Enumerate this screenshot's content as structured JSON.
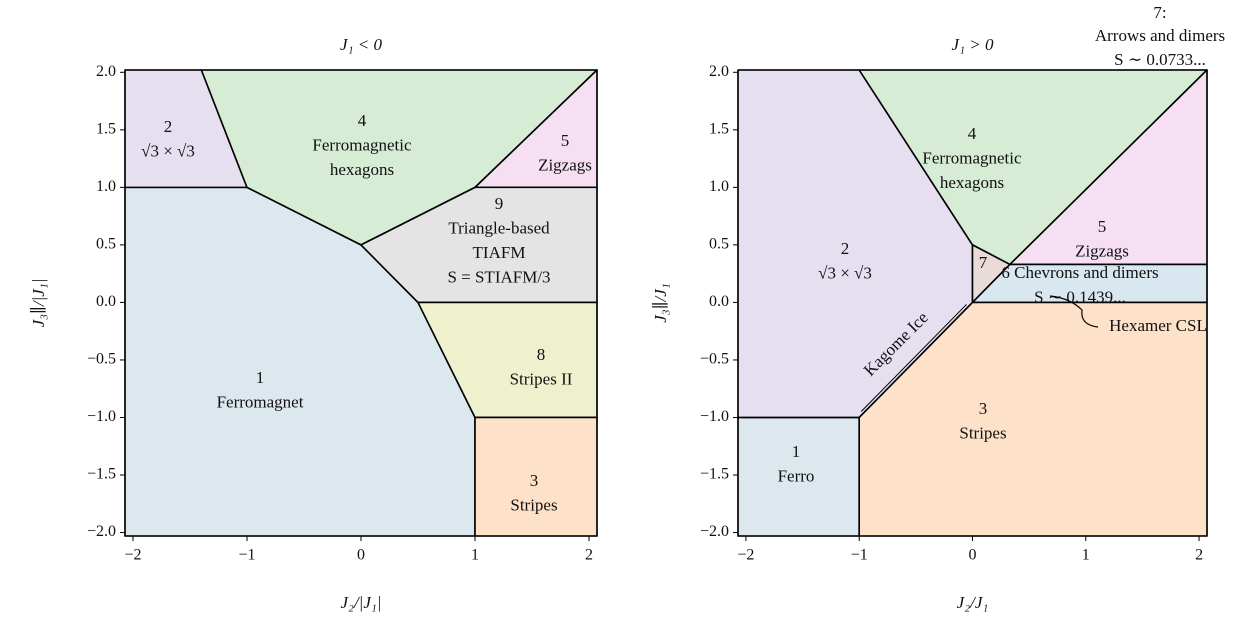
{
  "chart_data": [
    {
      "type": "phase",
      "title": "J₁ < 0",
      "xlabel": "J₂/|J₁|",
      "ylabel": "J₃∥/|J₁|",
      "xlim": [
        -2.07,
        2.07
      ],
      "ylim": [
        -2.03,
        2.02
      ],
      "xticks": [
        {
          "value": -2,
          "label": "−2"
        },
        {
          "value": -1,
          "label": "−1"
        },
        0,
        1,
        2
      ],
      "yticks": [
        {
          "value": -2,
          "label": "−2.0"
        },
        {
          "value": -1.5,
          "label": "−1.5"
        },
        {
          "value": -1,
          "label": "−1.0"
        },
        {
          "value": -0.5,
          "label": "−0.5"
        },
        {
          "value": 0,
          "label": "0.0"
        },
        0.5,
        {
          "value": 1,
          "label": "1.0"
        },
        1.5,
        {
          "value": 2,
          "label": "2.0"
        }
      ],
      "regions": [
        {
          "label": [
            "1",
            "Ferromagnet"
          ],
          "color": "#dde7ee",
          "x": [
            -2.07,
            -1,
            0,
            0.5,
            1,
            1,
            -2.07
          ],
          "y": [
            1,
            1,
            0.5,
            0,
            -1,
            -2.03,
            -2.03
          ]
        },
        {
          "label": [
            "2",
            "√3 × √3"
          ],
          "color": "#e6dff0",
          "x": [
            -2.07,
            -1.4,
            -1,
            -2.07
          ],
          "y": [
            2.02,
            2.02,
            1,
            1
          ]
        },
        {
          "label": [
            "4",
            "Ferromagnetic",
            "hexagons"
          ],
          "color": "#d6ecd5",
          "x": [
            -1.4,
            2.07,
            1,
            0,
            -1
          ],
          "y": [
            2.02,
            2.02,
            1,
            0.5,
            1
          ]
        },
        {
          "label": [
            "5",
            "Zigzags"
          ],
          "color": "#f6dff2",
          "x": [
            2.07,
            2.07,
            1
          ],
          "y": [
            2.02,
            1,
            1
          ]
        },
        {
          "label": [
            "9",
            "Triangle-based",
            "TIAFM",
            "S = STIAFM/3"
          ],
          "color": "#e4e4e4",
          "x": [
            0,
            1,
            2.07,
            2.07,
            0.5
          ],
          "y": [
            0.5,
            1,
            1,
            0,
            0
          ]
        },
        {
          "label": [
            "8",
            "Stripes II"
          ],
          "color": "#eff0cd",
          "x": [
            0.5,
            2.07,
            2.07,
            1
          ],
          "y": [
            0,
            0,
            -1,
            -1
          ]
        },
        {
          "label": [
            "3",
            "Stripes"
          ],
          "color": "#fde1c9",
          "x": [
            1,
            2.07,
            2.07,
            1
          ],
          "y": [
            -1,
            -1,
            -2.03,
            -2.03
          ]
        }
      ]
    },
    {
      "type": "phase",
      "title": "J₁ > 0",
      "xlabel": "J₂/J₁",
      "ylabel": "J₃∥/J₁",
      "xlim": [
        -2.07,
        2.07
      ],
      "ylim": [
        -2.03,
        2.02
      ],
      "xticks": [
        {
          "value": -2,
          "label": "−2"
        },
        {
          "value": -1,
          "label": "−1"
        },
        0,
        1,
        2
      ],
      "yticks": [
        {
          "value": -2,
          "label": "−2.0"
        },
        {
          "value": -1.5,
          "label": "−1.5"
        },
        {
          "value": -1,
          "label": "−1.0"
        },
        {
          "value": -0.5,
          "label": "−0.5"
        },
        {
          "value": 0,
          "label": "0.0"
        },
        0.5,
        {
          "value": 1,
          "label": "1.0"
        },
        1.5,
        {
          "value": 2,
          "label": "2.0"
        }
      ],
      "regions": [
        {
          "label": [
            "1",
            "Ferro"
          ],
          "color": "#dde7ee",
          "x": [
            -2.07,
            -1,
            -1,
            -2.07
          ],
          "y": [
            -1,
            -1,
            -2.03,
            -2.03
          ]
        },
        {
          "label": [
            "2",
            "√3 × √3"
          ],
          "color": "#e6dff0",
          "x": [
            -2.07,
            -1,
            0,
            0,
            -1,
            -2.07
          ],
          "y": [
            2.02,
            2.02,
            0.5,
            0,
            -1,
            -1
          ]
        },
        {
          "label": [
            "4",
            "Ferromagnetic",
            "hexagons"
          ],
          "color": "#d6ecd5",
          "x": [
            -1,
            2.07,
            0.33,
            0
          ],
          "y": [
            2.02,
            2.02,
            0.33,
            0.5
          ]
        },
        {
          "label": [
            "7"
          ],
          "color": "#e9dcd8",
          "x": [
            0,
            0.33,
            0
          ],
          "y": [
            0.5,
            0.33,
            0
          ]
        },
        {
          "label": [
            "5",
            "Zigzags"
          ],
          "color": "#f6dff2",
          "x": [
            2.07,
            2.07,
            0.33
          ],
          "y": [
            2.02,
            0.33,
            0.33
          ]
        },
        {
          "label": [
            "6 Chevrons and dimers",
            "S ∼ 0.1439..."
          ],
          "color": "#d9e7f0",
          "x": [
            0.33,
            2.07,
            2.07,
            0
          ],
          "y": [
            0.33,
            0.33,
            0,
            0
          ]
        },
        {
          "label": [
            "3",
            "Stripes"
          ],
          "color": "#fde1c9",
          "x": [
            -1,
            0,
            2.07,
            2.07,
            -1
          ],
          "y": [
            -1,
            0,
            0,
            -2.03,
            -2.03
          ]
        }
      ],
      "annotations": [
        "7:",
        "Arrows and dimers",
        "S ∼ 0.0733...",
        "Kagome Ice",
        "Hexamer CSL"
      ]
    }
  ]
}
